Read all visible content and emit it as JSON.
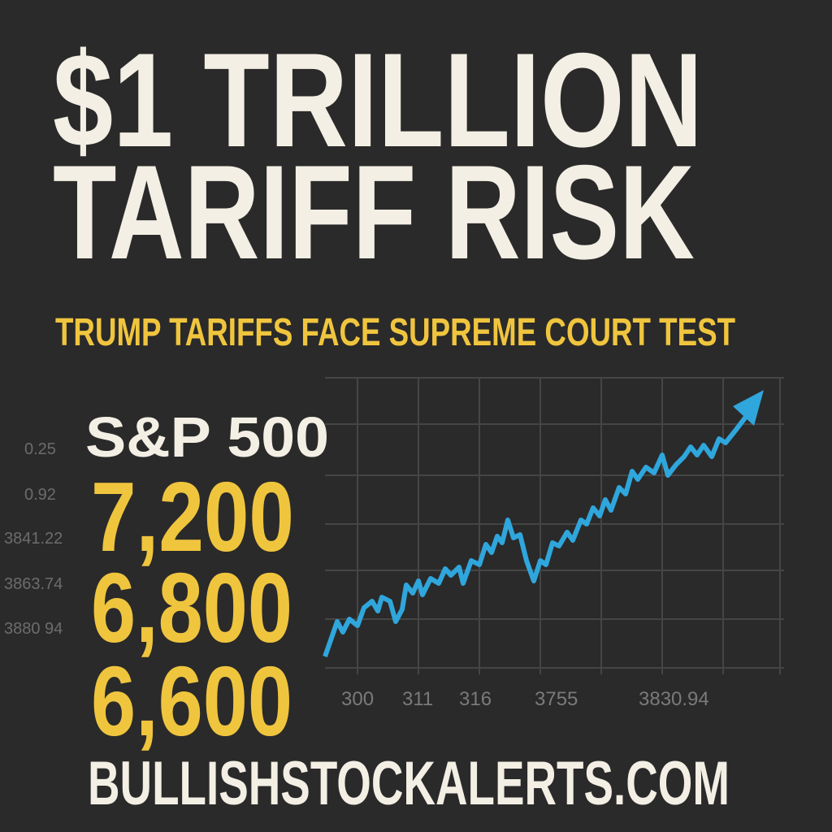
{
  "headline": {
    "line1": "$1 TRILLION",
    "line2": "TARIFF RISK"
  },
  "subtitle": "TRUMP TARIFFS FACE SUPREME COURT TEST",
  "index": {
    "name": "S&P 500",
    "targets": [
      "7,200",
      "6,800",
      "6,600"
    ]
  },
  "chart": {
    "left_labels": [
      "0.25",
      "0.92",
      "3841.22",
      "3863.74",
      "3880 94"
    ],
    "bottom_labels": [
      "300",
      "311",
      "316",
      "3755",
      "3830.94"
    ]
  },
  "footer": "BULLISHSTOCKALERTS.COM"
}
